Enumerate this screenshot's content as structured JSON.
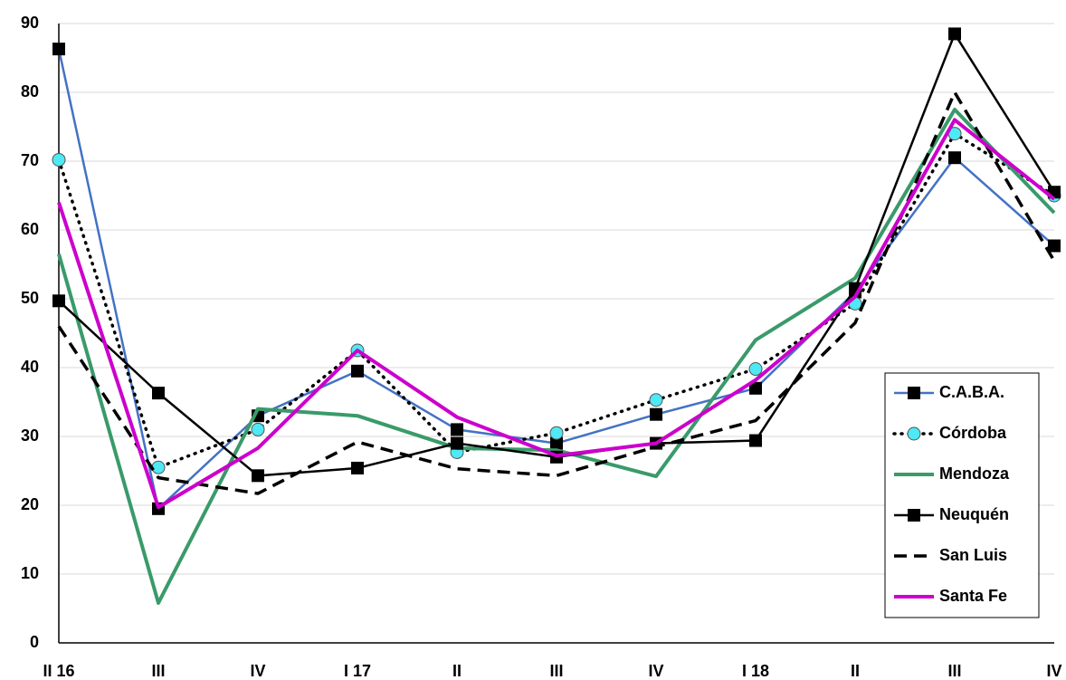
{
  "chart_data": {
    "type": "line",
    "categories": [
      "II 16",
      "III",
      "IV",
      "I 17",
      "II",
      "III",
      "IV",
      "I 18",
      "II",
      "III",
      "IV"
    ],
    "ylim": [
      0,
      90
    ],
    "yticks": [
      0,
      10,
      20,
      30,
      40,
      50,
      60,
      70,
      80,
      90
    ],
    "grid": true,
    "legend": "right",
    "series": [
      {
        "name": "C.A.B.A.",
        "color": "#4472c4",
        "line_style": "solid",
        "line_width": 2.5,
        "marker": "square",
        "marker_color": "#000000",
        "values": [
          86.3,
          19.5,
          33,
          39.5,
          31,
          29,
          33.2,
          37,
          51,
          70.5,
          57.7
        ]
      },
      {
        "name": "Córdoba",
        "color": "#000000",
        "line_style": "dotted",
        "line_width": 3.5,
        "marker": "circle",
        "marker_color": "#4ee9f5",
        "values": [
          70.2,
          25.5,
          31,
          42.5,
          27.7,
          30.5,
          35.3,
          39.8,
          49.3,
          74,
          65
        ]
      },
      {
        "name": "Mendoza",
        "color": "#3a9a6a",
        "line_style": "solid",
        "line_width": 4,
        "marker": "none",
        "marker_color": "#3a9a6a",
        "values": [
          56.5,
          5.8,
          34,
          33,
          28.3,
          28,
          24.2,
          44,
          53,
          77.5,
          62.5
        ]
      },
      {
        "name": "Neuquén",
        "color": "#000000",
        "line_style": "solid",
        "line_width": 2.5,
        "marker": "square",
        "marker_color": "#000000",
        "values": [
          49.7,
          36.3,
          24.3,
          25.4,
          29,
          27,
          29,
          29.4,
          51.5,
          88.5,
          65.5
        ]
      },
      {
        "name": "San Luis",
        "color": "#000000",
        "line_style": "dashed",
        "line_width": 3.5,
        "marker": "none",
        "marker_color": "#000000",
        "values": [
          46,
          24,
          21.7,
          29.2,
          25.3,
          24.3,
          28.5,
          32.3,
          46.5,
          80,
          55.5
        ]
      },
      {
        "name": "Santa Fe",
        "color": "#cc00cc",
        "line_style": "solid",
        "line_width": 4,
        "marker": "none",
        "marker_color": "#cc00cc",
        "values": [
          64,
          19.7,
          28.3,
          42.5,
          32.8,
          27.2,
          29,
          38.2,
          50.3,
          76,
          64.5
        ]
      }
    ]
  }
}
